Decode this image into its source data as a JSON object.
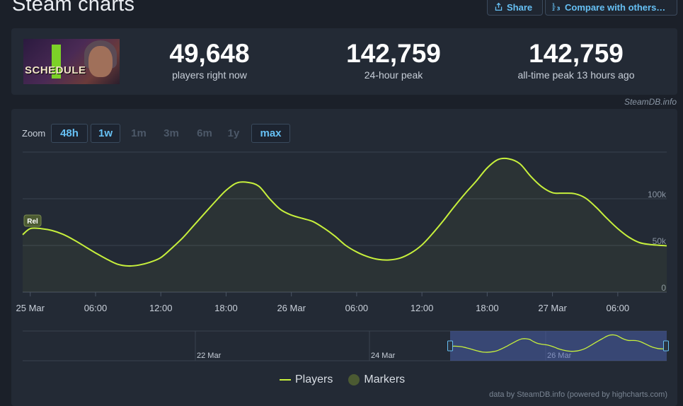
{
  "page": {
    "title": "Steam charts",
    "share_label": "Share",
    "compare_label": "Compare with others…",
    "credit": "SteamDB.info",
    "footer": "data by SteamDB.info (powered by highcharts.com)"
  },
  "game": {
    "capsule_text": "SCHEDULE"
  },
  "stats": [
    {
      "value": "49,648",
      "label": "players right now"
    },
    {
      "value": "142,759",
      "label": "24-hour peak"
    },
    {
      "value": "142,759",
      "label": "all-time peak 13 hours ago"
    }
  ],
  "zoom": {
    "label": "Zoom",
    "options": [
      {
        "label": "48h",
        "state": "active"
      },
      {
        "label": "1w",
        "state": "active"
      },
      {
        "label": "1m",
        "state": "disabled"
      },
      {
        "label": "3m",
        "state": "disabled"
      },
      {
        "label": "6m",
        "state": "disabled"
      },
      {
        "label": "1y",
        "state": "disabled"
      },
      {
        "label": "max",
        "state": "active"
      }
    ]
  },
  "colors": {
    "line": "#c7f03c",
    "accent": "#66c0f4",
    "marker": "#4b5a32"
  },
  "chart_data": {
    "type": "line",
    "y_ticks": [
      "0",
      "50k",
      "100k"
    ],
    "ylim": [
      0,
      150000
    ],
    "x_tick_labels": [
      "25 Mar",
      "06:00",
      "12:00",
      "18:00",
      "26 Mar",
      "06:00",
      "12:00",
      "18:00",
      "27 Mar",
      "06:00"
    ],
    "x_tick_hours": [
      0,
      6,
      12,
      18,
      24,
      30,
      36,
      42,
      48,
      54
    ],
    "xlim_hours": [
      -0.7,
      58.5
    ],
    "marker_label": "Rel",
    "series": [
      {
        "name": "Players",
        "points": [
          [
            -0.7,
            61500
          ],
          [
            0,
            68000
          ],
          [
            1,
            68000
          ],
          [
            2,
            66000
          ],
          [
            3,
            62000
          ],
          [
            4,
            56000
          ],
          [
            5,
            49000
          ],
          [
            6,
            42000
          ],
          [
            7,
            35500
          ],
          [
            8,
            30000
          ],
          [
            9,
            28000
          ],
          [
            10,
            29000
          ],
          [
            11,
            32000
          ],
          [
            12,
            37000
          ],
          [
            13,
            47000
          ],
          [
            14,
            58000
          ],
          [
            15,
            71000
          ],
          [
            16,
            84000
          ],
          [
            17,
            97000
          ],
          [
            18,
            109000
          ],
          [
            19,
            117000
          ],
          [
            20,
            117500
          ],
          [
            21,
            113500
          ],
          [
            22,
            100000
          ],
          [
            23,
            88500
          ],
          [
            24,
            82500
          ],
          [
            25,
            79000
          ],
          [
            26,
            75500
          ],
          [
            27,
            68500
          ],
          [
            28,
            60000
          ],
          [
            29,
            50000
          ],
          [
            30,
            43000
          ],
          [
            31,
            38000
          ],
          [
            32,
            35000
          ],
          [
            33,
            34500
          ],
          [
            34,
            36500
          ],
          [
            35,
            42000
          ],
          [
            36,
            50500
          ],
          [
            37,
            63000
          ],
          [
            38,
            77000
          ],
          [
            39,
            92000
          ],
          [
            40,
            106000
          ],
          [
            41,
            119000
          ],
          [
            42,
            133000
          ],
          [
            43,
            142000
          ],
          [
            44,
            142759
          ],
          [
            45,
            137500
          ],
          [
            46,
            124000
          ],
          [
            47,
            113000
          ],
          [
            48,
            106500
          ],
          [
            49,
            106000
          ],
          [
            50,
            105500
          ],
          [
            51,
            101000
          ],
          [
            52,
            91000
          ],
          [
            53,
            79000
          ],
          [
            54,
            68000
          ],
          [
            55,
            59000
          ],
          [
            56,
            53000
          ],
          [
            57,
            51000
          ],
          [
            58.5,
            49648
          ]
        ]
      }
    ],
    "navigator": {
      "date_labels": [
        "22 Mar",
        "24 Mar",
        "26 Mar"
      ]
    },
    "legend": [
      {
        "name": "Players",
        "kind": "line"
      },
      {
        "name": "Markers",
        "kind": "dot"
      }
    ]
  }
}
